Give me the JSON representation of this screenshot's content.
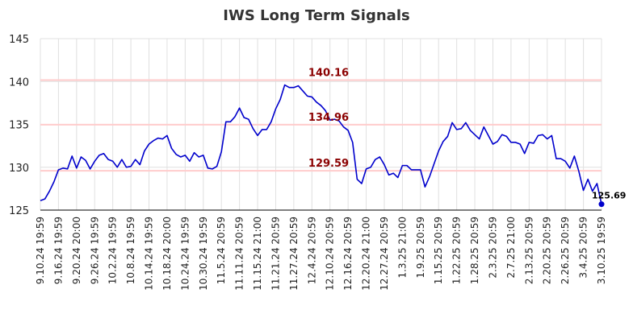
{
  "chart_data": {
    "type": "line",
    "title": "IWS Long Term Signals",
    "xlabel": "",
    "ylabel": "",
    "ylim": [
      125,
      145
    ],
    "yticks": [
      125,
      130,
      135,
      140,
      145
    ],
    "grid": true,
    "x_tick_labels": [
      "9.10.24 19:59",
      "9.16.24 19:59",
      "9.20.24 20:00",
      "9.26.24 19:59",
      "10.2.24 19:59",
      "10.8.24 19:59",
      "10.14.24 19:59",
      "10.18.24 20:00",
      "10.24.24 19:59",
      "10.30.24 19:59",
      "11.5.24 20:59",
      "11.11.24 20:59",
      "11.15.24 21:00",
      "11.21.24 20:59",
      "11.27.24 20:59",
      "12.4.24 20:59",
      "12.10.24 20:59",
      "12.16.24 20:59",
      "12.20.24 21:00",
      "12.27.24 20:59",
      "1.3.25 21:00",
      "1.9.25 20:59",
      "1.15.25 20:59",
      "1.22.25 20:59",
      "1.28.25 20:59",
      "2.3.25 20:59",
      "2.7.25 21:00",
      "2.13.25 20:59",
      "2.20.25 20:59",
      "2.26.25 20:59",
      "3.4.25 20:59",
      "3.10.25 19:59"
    ],
    "series": [
      {
        "values": [
          126.1,
          126.3,
          127.2,
          128.3,
          129.7,
          129.9,
          129.8,
          131.3,
          129.9,
          131.2,
          130.8,
          129.8,
          130.7,
          131.4,
          131.6,
          130.9,
          130.7,
          130.0,
          130.9,
          130.0,
          130.1,
          130.9,
          130.3,
          131.9,
          132.7,
          133.1,
          133.4,
          133.3,
          133.7,
          132.2,
          131.5,
          131.2,
          131.4,
          130.7,
          131.7,
          131.2,
          131.4,
          129.9,
          129.8,
          130.1,
          131.8,
          135.3,
          135.3,
          135.9,
          136.9,
          135.8,
          135.6,
          134.5,
          133.7,
          134.4,
          134.4,
          135.3,
          136.8,
          137.9,
          139.6,
          139.3,
          139.3,
          139.5,
          138.9,
          138.3,
          138.2,
          137.6,
          137.2,
          136.6,
          135.5,
          135.6,
          135.4,
          134.7,
          134.3,
          132.9,
          128.6,
          128.1,
          129.8,
          130.0,
          130.9,
          131.2,
          130.3,
          129.1,
          129.3,
          128.8,
          130.2,
          130.2,
          129.7,
          129.7,
          129.7,
          127.7,
          128.9,
          130.4,
          131.9,
          133.0,
          133.6,
          135.2,
          134.4,
          134.5,
          135.2,
          134.3,
          133.8,
          133.3,
          134.7,
          133.7,
          132.7,
          133.0,
          133.8,
          133.6,
          132.9,
          132.9,
          132.7,
          131.6,
          132.9,
          132.8,
          133.7,
          133.8,
          133.3,
          133.7,
          131.0,
          131.0,
          130.7,
          129.9,
          131.3,
          129.5,
          127.3,
          128.6,
          127.2,
          128.1,
          125.69
        ]
      }
    ],
    "signal_lines": [
      {
        "value": 140.16,
        "label": "140.16"
      },
      {
        "value": 134.96,
        "label": "134.96"
      },
      {
        "value": 129.59,
        "label": "129.59"
      }
    ],
    "last_value_label": "125.69",
    "colors": {
      "line": "#0000cc",
      "signal_line": "#ffcccc",
      "signal_label": "#8b0000",
      "grid": "#e0e0e0",
      "axis": "#000000"
    }
  }
}
